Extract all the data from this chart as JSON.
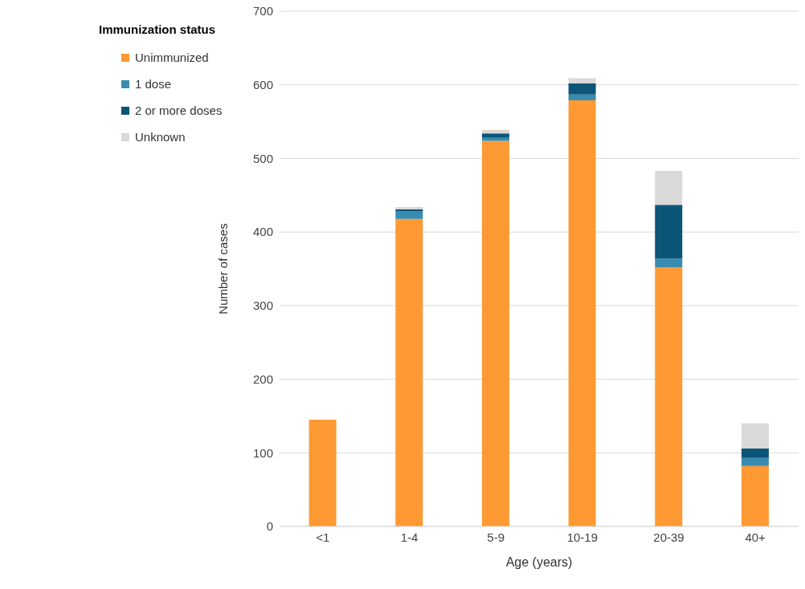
{
  "chart_data": {
    "type": "bar",
    "stacked": true,
    "xlabel": "Age (years)",
    "ylabel": "Number of cases",
    "legend_title": "Immunization status",
    "legend": "top left",
    "grid": "y",
    "categories": [
      "<1",
      "1-4",
      "5-9",
      "10-19",
      "20-39",
      "40+"
    ],
    "series": [
      {
        "name": "Unimmunized",
        "color": "#ff9933",
        "values": [
          145,
          418,
          524,
          579,
          352,
          82
        ]
      },
      {
        "name": "1 dose",
        "color": "#3a8bb0",
        "values": [
          0,
          10,
          4,
          8,
          12,
          11
        ]
      },
      {
        "name": "2 or more doses",
        "color": "#0b5577",
        "values": [
          0,
          3,
          6,
          15,
          73,
          13
        ]
      },
      {
        "name": "Unknown",
        "color": "#d9d9d9",
        "values": [
          0,
          3,
          5,
          7,
          46,
          34
        ]
      }
    ],
    "ylim": [
      0,
      700
    ],
    "yticks": [
      0,
      100,
      200,
      300,
      400,
      500,
      600,
      700
    ]
  }
}
